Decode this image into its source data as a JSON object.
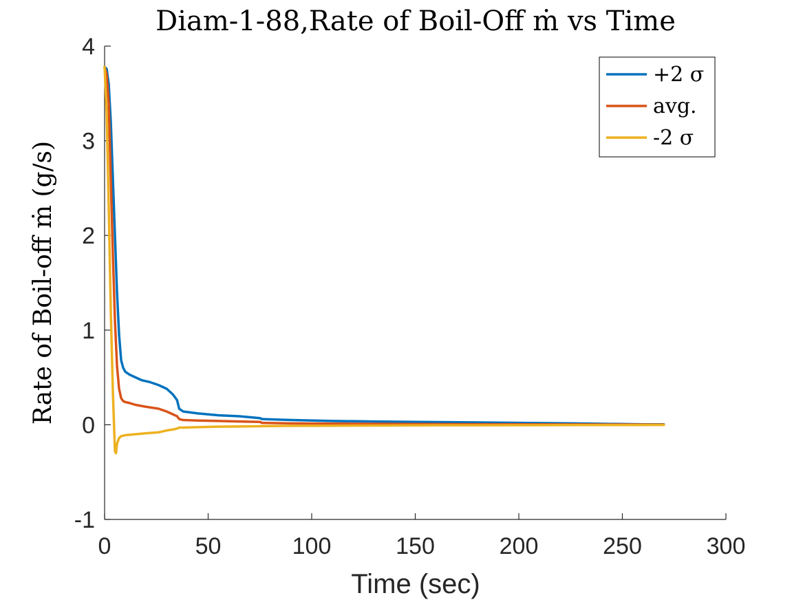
{
  "chart_data": {
    "type": "line",
    "title": "Diam-1-88,Rate of Boil-Off ṁ vs Time",
    "xlabel": "Time (sec)",
    "ylabel": "Rate of Boil-off ṁ (g/s)",
    "xlim": [
      0,
      300
    ],
    "ylim": [
      -1,
      4
    ],
    "xticks": [
      0,
      50,
      100,
      150,
      200,
      250,
      300
    ],
    "yticks": [
      -1,
      0,
      1,
      2,
      3,
      4
    ],
    "xtick_labels": [
      "0",
      "50",
      "100",
      "150",
      "200",
      "250",
      "300"
    ],
    "ytick_labels": [
      "-1",
      "0",
      "1",
      "2",
      "3",
      "4"
    ],
    "grid": false,
    "legend_position": "top-right",
    "series": [
      {
        "name": "+2 σ",
        "color": "#0072BD",
        "x": [
          0,
          1,
          2,
          3,
          4,
          5,
          6,
          7,
          8,
          9,
          10,
          12,
          15,
          18,
          22,
          26,
          30,
          33,
          35,
          36,
          38,
          45,
          55,
          65,
          75,
          76,
          90,
          110,
          130,
          150,
          180,
          200,
          226,
          240,
          260,
          270
        ],
        "y": [
          3.78,
          3.76,
          3.6,
          3.2,
          2.6,
          2.0,
          1.4,
          0.95,
          0.68,
          0.6,
          0.56,
          0.53,
          0.5,
          0.47,
          0.45,
          0.42,
          0.38,
          0.32,
          0.26,
          0.17,
          0.14,
          0.12,
          0.1,
          0.09,
          0.07,
          0.06,
          0.05,
          0.04,
          0.035,
          0.03,
          0.025,
          0.02,
          0.015,
          0.01,
          0.005,
          0.005
        ]
      },
      {
        "name": "avg.",
        "color": "#D95319",
        "x": [
          0,
          1,
          2,
          3,
          4,
          5,
          6,
          7,
          8,
          9,
          10,
          12,
          15,
          20,
          26,
          30,
          33,
          35,
          36,
          38,
          45,
          55,
          65,
          75,
          76,
          90,
          110,
          130,
          150,
          180,
          200,
          230,
          250,
          270
        ],
        "y": [
          3.78,
          3.7,
          3.4,
          2.6,
          1.8,
          1.1,
          0.62,
          0.38,
          0.28,
          0.25,
          0.24,
          0.23,
          0.21,
          0.19,
          0.17,
          0.14,
          0.11,
          0.09,
          0.06,
          0.05,
          0.045,
          0.04,
          0.035,
          0.03,
          0.02,
          0.015,
          0.012,
          0.01,
          0.008,
          0.006,
          0.005,
          0.004,
          0.003,
          0.002
        ]
      },
      {
        "name": "-2 σ",
        "color": "#EDB120",
        "x": [
          0,
          1,
          2,
          3,
          4,
          5,
          5.5,
          6,
          7,
          8,
          10,
          15,
          20,
          26,
          30,
          33,
          35,
          36,
          38,
          45,
          55,
          65,
          75,
          90,
          110,
          130,
          150,
          180,
          200,
          230,
          250,
          270
        ],
        "y": [
          3.78,
          3.3,
          2.3,
          1.2,
          0.35,
          -0.28,
          -0.3,
          -0.2,
          -0.14,
          -0.12,
          -0.11,
          -0.1,
          -0.09,
          -0.08,
          -0.06,
          -0.05,
          -0.04,
          -0.03,
          -0.03,
          -0.025,
          -0.02,
          -0.018,
          -0.015,
          -0.012,
          -0.01,
          -0.008,
          -0.006,
          -0.005,
          -0.004,
          -0.003,
          -0.003,
          -0.002
        ]
      }
    ]
  }
}
